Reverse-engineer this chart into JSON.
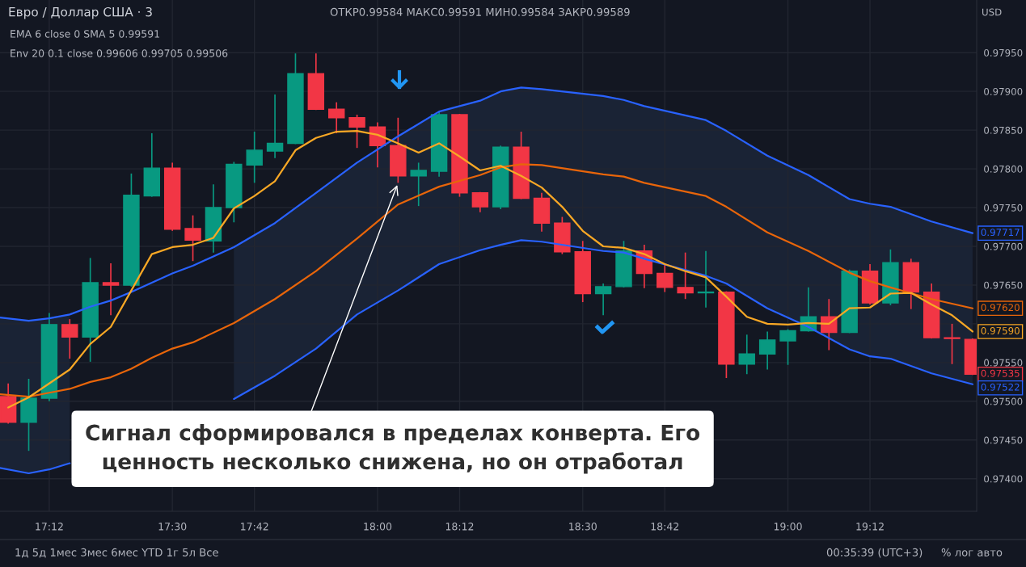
{
  "chart_data": {
    "type": "candlestick",
    "title": "Евро / Доллар США · 3",
    "x": [
      17.1,
      17.15,
      17.2,
      17.25,
      17.3,
      17.35,
      17.4,
      17.45,
      17.5,
      17.55,
      17.6,
      17.65,
      17.7,
      17.75,
      17.8,
      17.85,
      17.9,
      17.95,
      18.0,
      18.05,
      18.1,
      18.15,
      18.2,
      18.25,
      18.3,
      18.35,
      18.4,
      18.45,
      18.5,
      18.55,
      18.6,
      18.65,
      18.7,
      18.75,
      18.8,
      18.85,
      18.9,
      18.95,
      19.0,
      19.05,
      19.1,
      19.15,
      19.2,
      19.25,
      19.3,
      19.35,
      19.4,
      19.45
    ],
    "ohlc": [
      [
        0.97506,
        0.97523,
        0.97471,
        0.97473
      ],
      [
        0.97473,
        0.97529,
        0.97436,
        0.97504
      ],
      [
        0.97504,
        0.97614,
        0.975,
        0.97599
      ],
      [
        0.97599,
        0.97606,
        0.97555,
        0.97583
      ],
      [
        0.97583,
        0.97685,
        0.97551,
        0.97653
      ],
      [
        0.97653,
        0.97678,
        0.97611,
        0.9765
      ],
      [
        0.9765,
        0.97794,
        0.97648,
        0.97766
      ],
      [
        0.97765,
        0.97846,
        0.97764,
        0.97801
      ],
      [
        0.97801,
        0.97808,
        0.9772,
        0.97722
      ],
      [
        0.97723,
        0.9774,
        0.97681,
        0.97708
      ],
      [
        0.97707,
        0.9778,
        0.97692,
        0.9775
      ],
      [
        0.9775,
        0.97809,
        0.97731,
        0.97806
      ],
      [
        0.97805,
        0.97848,
        0.97782,
        0.97824
      ],
      [
        0.97823,
        0.97896,
        0.97814,
        0.97833
      ],
      [
        0.97833,
        0.97949,
        0.97832,
        0.97923
      ],
      [
        0.97923,
        0.97949,
        0.97876,
        0.97877
      ],
      [
        0.97877,
        0.97886,
        0.97846,
        0.97866
      ],
      [
        0.97866,
        0.9787,
        0.97827,
        0.97854
      ],
      [
        0.97854,
        0.9786,
        0.97802,
        0.9783
      ],
      [
        0.9783,
        0.97866,
        0.97782,
        0.97791
      ],
      [
        0.97791,
        0.97808,
        0.97752,
        0.97798
      ],
      [
        0.97797,
        0.97873,
        0.9779,
        0.9787
      ],
      [
        0.9787,
        0.97871,
        0.97764,
        0.97769
      ],
      [
        0.97769,
        0.9777,
        0.97744,
        0.97751
      ],
      [
        0.97751,
        0.9783,
        0.97748,
        0.97828
      ],
      [
        0.97828,
        0.97848,
        0.97761,
        0.97762
      ],
      [
        0.97762,
        0.97769,
        0.97719,
        0.9773
      ],
      [
        0.9773,
        0.97738,
        0.9769,
        0.97693
      ],
      [
        0.97693,
        0.97707,
        0.97628,
        0.97639
      ],
      [
        0.97639,
        0.97652,
        0.97611,
        0.97648
      ],
      [
        0.97648,
        0.97707,
        0.97647,
        0.97694
      ],
      [
        0.97694,
        0.97702,
        0.97646,
        0.97665
      ],
      [
        0.97665,
        0.97678,
        0.97641,
        0.97647
      ],
      [
        0.97647,
        0.97692,
        0.97632,
        0.9764
      ],
      [
        0.9764,
        0.97694,
        0.97621,
        0.97641
      ],
      [
        0.97641,
        0.97642,
        0.9753,
        0.97548
      ],
      [
        0.97548,
        0.97586,
        0.97535,
        0.97561
      ],
      [
        0.97561,
        0.9759,
        0.97541,
        0.97579
      ],
      [
        0.97578,
        0.97593,
        0.97547,
        0.97591
      ],
      [
        0.97591,
        0.97647,
        0.9759,
        0.97609
      ],
      [
        0.97609,
        0.97632,
        0.97566,
        0.97589
      ],
      [
        0.97589,
        0.9767,
        0.97588,
        0.97668
      ],
      [
        0.97668,
        0.97677,
        0.97625,
        0.97627
      ],
      [
        0.97627,
        0.97696,
        0.97624,
        0.97679
      ],
      [
        0.97679,
        0.97684,
        0.97619,
        0.97641
      ],
      [
        0.97641,
        0.97652,
        0.97581,
        0.97582
      ],
      [
        0.97582,
        0.976,
        0.97548,
        0.97581
      ],
      [
        0.9758,
        0.97581,
        0.97534,
        0.97535
      ]
    ],
    "colors": [
      "#f23645",
      "#089981",
      "#089981",
      "#f23645",
      "#089981",
      "#f23645",
      "#089981",
      "#089981",
      "#f23645",
      "#f23645",
      "#089981",
      "#089981",
      "#089981",
      "#089981",
      "#089981",
      "#f23645",
      "#f23645",
      "#f23645",
      "#f23645",
      "#f23645",
      "#089981",
      "#089981",
      "#f23645",
      "#f23645",
      "#089981",
      "#f23645",
      "#f23645",
      "#f23645",
      "#f23645",
      "#089981",
      "#089981",
      "#f23645",
      "#f23645",
      "#f23645",
      "#089981",
      "#f23645",
      "#089981",
      "#089981",
      "#089981",
      "#089981",
      "#f23645",
      "#089981",
      "#f23645",
      "#089981",
      "#f23645",
      "#f23645",
      "#f23645",
      "#f23645"
    ],
    "value_labels": [
      null,
      null,
      null,
      null,
      null,
      null,
      null,
      null,
      null,
      null,
      null,
      null,
      null,
      null,
      null,
      null,
      null,
      null,
      null,
      null,
      null,
      null,
      null,
      null,
      null,
      null,
      null,
      null,
      null,
      null,
      null,
      null,
      null,
      null,
      null,
      null,
      null,
      null,
      null,
      null,
      null,
      null,
      null,
      null,
      null,
      null,
      null,
      "0.97535"
    ],
    "series": [
      {
        "type": "line",
        "color": "#2962ff",
        "x": [
          17.08,
          17.15,
          17.2,
          17.25,
          17.3,
          17.35,
          17.4,
          17.45,
          17.5,
          17.55,
          17.65,
          17.75,
          17.85,
          17.95,
          18.05,
          18.15,
          18.25,
          18.3,
          18.35,
          18.4,
          18.55,
          18.6,
          18.65,
          18.8,
          18.85,
          18.95,
          19.05,
          19.15,
          19.2,
          19.25,
          19.35,
          19.45
        ],
        "values": [
          0.97608,
          0.97604,
          0.97607,
          0.97612,
          0.97622,
          0.9763,
          0.97641,
          0.97653,
          0.97665,
          0.97675,
          0.97699,
          0.9773,
          0.97769,
          0.97808,
          0.97842,
          0.97874,
          0.97888,
          0.979,
          0.97905,
          0.97903,
          0.97894,
          0.97889,
          0.97881,
          0.97863,
          0.97849,
          0.97817,
          0.97792,
          0.97761,
          0.97755,
          0.97751,
          0.97732,
          0.97717
        ],
        "value_labels": [
          null,
          null,
          null,
          null,
          null,
          null,
          null,
          null,
          null,
          null,
          null,
          null,
          null,
          null,
          null,
          null,
          null,
          null,
          null,
          null,
          null,
          null,
          null,
          null,
          null,
          null,
          null,
          null,
          null,
          null,
          null,
          "0.97717"
        ]
      },
      {
        "type": "line",
        "color": "#2962ff",
        "x": [
          17.08,
          17.15,
          17.2,
          17.25,
          17.3,
          17.35,
          17.4,
          17.45,
          17.5,
          17.55,
          17.65,
          17.75,
          17.85,
          17.95,
          18.05,
          18.15,
          18.25,
          18.3,
          18.35,
          18.4,
          18.55,
          18.6,
          18.65,
          18.8,
          18.85,
          18.95,
          19.05,
          19.15,
          19.2,
          19.25,
          19.35,
          19.45
        ],
        "values": [
          0.97414,
          0.97407,
          0.97412,
          0.9742,
          null,
          null,
          null,
          null,
          null,
          null,
          0.97503,
          0.97533,
          0.97568,
          0.97612,
          0.97643,
          0.97677,
          0.97695,
          0.97702,
          0.97708,
          0.97706,
          0.97694,
          0.97692,
          0.97684,
          0.97662,
          0.97652,
          0.9762,
          0.97596,
          0.97567,
          0.97558,
          0.97555,
          0.97536,
          0.97522
        ],
        "value_labels": [
          null,
          null,
          null,
          null,
          null,
          null,
          null,
          null,
          null,
          null,
          null,
          null,
          null,
          null,
          null,
          null,
          null,
          null,
          null,
          null,
          null,
          null,
          null,
          null,
          null,
          null,
          null,
          null,
          null,
          null,
          null,
          "0.97522"
        ]
      },
      {
        "type": "line",
        "color": "#e8650a",
        "x": [
          17.08,
          17.15,
          17.2,
          17.25,
          17.3,
          17.35,
          17.4,
          17.45,
          17.5,
          17.55,
          17.65,
          17.75,
          17.85,
          17.95,
          18.05,
          18.15,
          18.25,
          18.3,
          18.35,
          18.4,
          18.55,
          18.6,
          18.65,
          18.8,
          18.85,
          18.95,
          19.05,
          19.15,
          19.2,
          19.25,
          19.35,
          19.45
        ],
        "values": [
          0.97509,
          0.97506,
          0.97511,
          0.97516,
          0.97525,
          0.97531,
          0.97542,
          0.97556,
          0.97568,
          0.97576,
          0.97601,
          0.97632,
          0.97668,
          0.9771,
          0.97754,
          0.97777,
          0.97792,
          0.97802,
          0.97806,
          0.97805,
          0.97793,
          0.9779,
          0.97782,
          0.97765,
          0.97751,
          0.97718,
          0.97694,
          0.97666,
          0.97655,
          0.97647,
          0.97632,
          0.9762
        ],
        "upper": [
          0.97608,
          0.97604,
          0.97607,
          0.97612,
          null,
          null,
          null,
          null,
          null,
          null,
          0.97699,
          0.9773,
          0.97769,
          0.97808,
          0.97842,
          0.97874,
          0.97888,
          0.979,
          0.97905,
          0.97903,
          0.97894,
          0.97889,
          0.97881,
          0.97863,
          0.97849,
          0.97817,
          0.97792,
          0.97761,
          0.97755,
          0.97751,
          0.97732,
          0.97717
        ],
        "lower": [
          0.97414,
          0.97407,
          0.97412,
          0.9742,
          null,
          null,
          null,
          null,
          null,
          null,
          0.97503,
          0.97533,
          0.97568,
          0.97612,
          0.97643,
          0.97677,
          0.97695,
          0.97702,
          0.97708,
          0.97706,
          0.97694,
          0.97692,
          0.97684,
          0.97662,
          0.97652,
          0.9762,
          0.97596,
          0.97567,
          0.97558,
          0.97555,
          0.97536,
          0.97522
        ],
        "value_labels": [
          null,
          null,
          null,
          null,
          null,
          null,
          null,
          null,
          null,
          null,
          null,
          null,
          null,
          null,
          null,
          null,
          null,
          null,
          null,
          null,
          null,
          null,
          null,
          null,
          null,
          null,
          null,
          null,
          null,
          null,
          null,
          "0.97620"
        ]
      },
      {
        "type": "line",
        "color": "#f9a825",
        "x": [
          17.1,
          17.15,
          17.25,
          17.3,
          17.35,
          17.4,
          17.45,
          17.5,
          17.55,
          17.6,
          17.65,
          17.7,
          17.75,
          17.8,
          17.85,
          17.9,
          17.95,
          18.0,
          18.05,
          18.1,
          18.15,
          18.2,
          18.25,
          18.3,
          18.35,
          18.4,
          18.45,
          18.5,
          18.55,
          18.6,
          18.65,
          18.7,
          18.75,
          18.8,
          18.85,
          18.9,
          18.95,
          19.0,
          19.05,
          19.1,
          19.15,
          19.2,
          19.25,
          19.3,
          19.35,
          19.4,
          19.45
        ],
        "values": [
          0.97492,
          0.97505,
          0.97541,
          0.97574,
          0.97596,
          0.97643,
          0.9769,
          0.97699,
          0.97702,
          0.97711,
          0.97749,
          0.97765,
          0.97784,
          0.97824,
          0.9784,
          0.97848,
          0.97849,
          0.97844,
          0.97833,
          0.97821,
          0.97833,
          0.97816,
          0.97798,
          0.97804,
          0.97791,
          0.97776,
          0.97751,
          0.9772,
          0.977,
          0.97698,
          0.9769,
          0.97677,
          0.97668,
          0.9766,
          0.97635,
          0.97609,
          0.976,
          0.97599,
          0.97601,
          0.976,
          0.9762,
          0.97621,
          0.97639,
          0.9764,
          0.97625,
          0.97611,
          0.9759
        ],
        "value_labels": [
          null,
          null,
          null,
          null,
          null,
          null,
          null,
          null,
          null,
          null,
          null,
          null,
          null,
          null,
          null,
          null,
          null,
          null,
          null,
          null,
          null,
          null,
          null,
          null,
          null,
          null,
          null,
          null,
          null,
          null,
          null,
          null,
          null,
          null,
          null,
          null,
          null,
          null,
          null,
          null,
          null,
          null,
          null,
          null,
          null,
          null,
          "0.97590"
        ]
      }
    ],
    "xlim": [
      17.08,
      19.46
    ],
    "ylim": [
      0.97358,
      0.98018
    ],
    "xticks": [
      {
        "value": 17.2,
        "label": "17:12"
      },
      {
        "value": 17.5,
        "label": "17:30"
      },
      {
        "value": 17.7,
        "label": "17:42"
      },
      {
        "value": 18.0,
        "label": "18:00"
      },
      {
        "value": 18.2,
        "label": "18:12"
      },
      {
        "value": 18.5,
        "label": "18:30"
      },
      {
        "value": 18.7,
        "label": "18:42"
      },
      {
        "value": 19.0,
        "label": "19:00"
      },
      {
        "value": 19.2,
        "label": "19:12"
      }
    ],
    "yticks": [
      {
        "value": 0.974,
        "label": "0.97400"
      },
      {
        "value": 0.9745,
        "label": "0.97450"
      },
      {
        "value": 0.975,
        "label": "0.97500"
      },
      {
        "value": 0.9755,
        "label": "0.97550"
      },
      {
        "value": 0.976,
        "label": null
      },
      {
        "value": 0.9765,
        "label": "0.97650"
      },
      {
        "value": 0.977,
        "label": "0.97700"
      },
      {
        "value": 0.9775,
        "label": "0.97750"
      },
      {
        "value": 0.978,
        "label": "0.97800"
      },
      {
        "value": 0.9785,
        "label": "0.97850"
      },
      {
        "value": 0.979,
        "label": "0.97900"
      },
      {
        "value": 0.9795,
        "label": "0.97950"
      }
    ],
    "grid": true,
    "annotations": [
      "ОТКР0.99584 МАКС0.99591 МИН0.99584 ЗАКР0.99589",
      "EMA 6 close 0 SMA 5 0.99591",
      "Env 20 0.1 close 0.99606 0.99705 0.99506",
      "USD",
      "1д 5д 1мес 3мес 6мес YTD 1г 5л Все",
      "00:35:39 (UTC+3)",
      "% лог авто",
      {
        "text": "Сигнал сформировался в пределах конверта. Его\nценность несколько снижена, но он отработал",
        "x": 18.05,
        "y": 0.97782
      }
    ]
  }
}
